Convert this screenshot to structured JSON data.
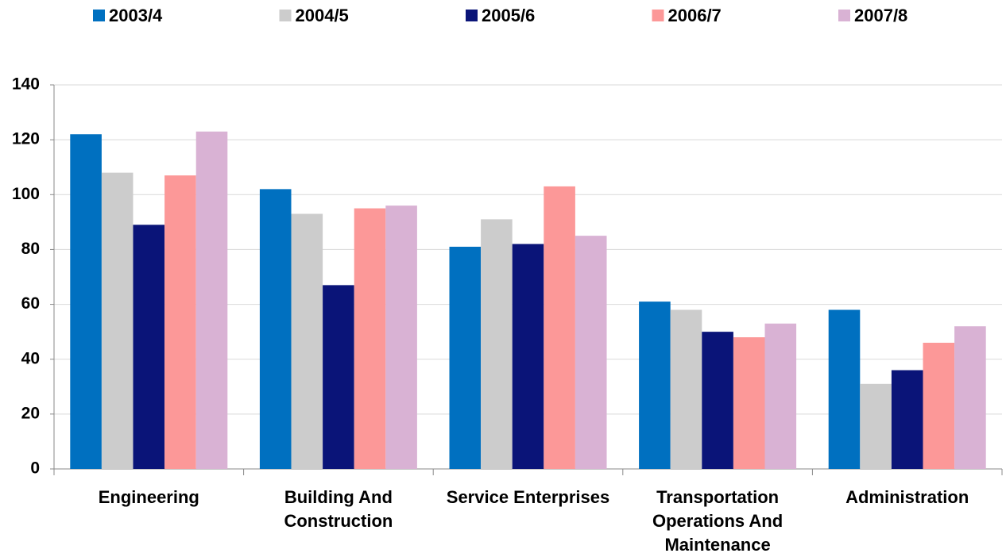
{
  "chart_data": {
    "type": "bar",
    "categories": [
      "Engineering",
      "Building And Construction",
      "Service Enterprises",
      "Transportation Operations And Maintenance",
      "Administration"
    ],
    "series": [
      {
        "name": "2003/4",
        "color": "#0070c0",
        "values": [
          122,
          102,
          81,
          61,
          58
        ]
      },
      {
        "name": "2004/5",
        "color": "#cccccc",
        "values": [
          108,
          93,
          91,
          58,
          31
        ]
      },
      {
        "name": "2005/6",
        "color": "#0a1478",
        "values": [
          89,
          67,
          82,
          50,
          36
        ]
      },
      {
        "name": "2006/7",
        "color": "#fc9898",
        "values": [
          107,
          95,
          103,
          48,
          46
        ]
      },
      {
        "name": "2007/8",
        "color": "#d9b2d4",
        "values": [
          123,
          96,
          85,
          53,
          52
        ]
      }
    ],
    "ylim": [
      0,
      140
    ],
    "yticks": [
      0,
      20,
      40,
      60,
      80,
      100,
      120,
      140
    ],
    "grid": true,
    "legend": "top"
  }
}
